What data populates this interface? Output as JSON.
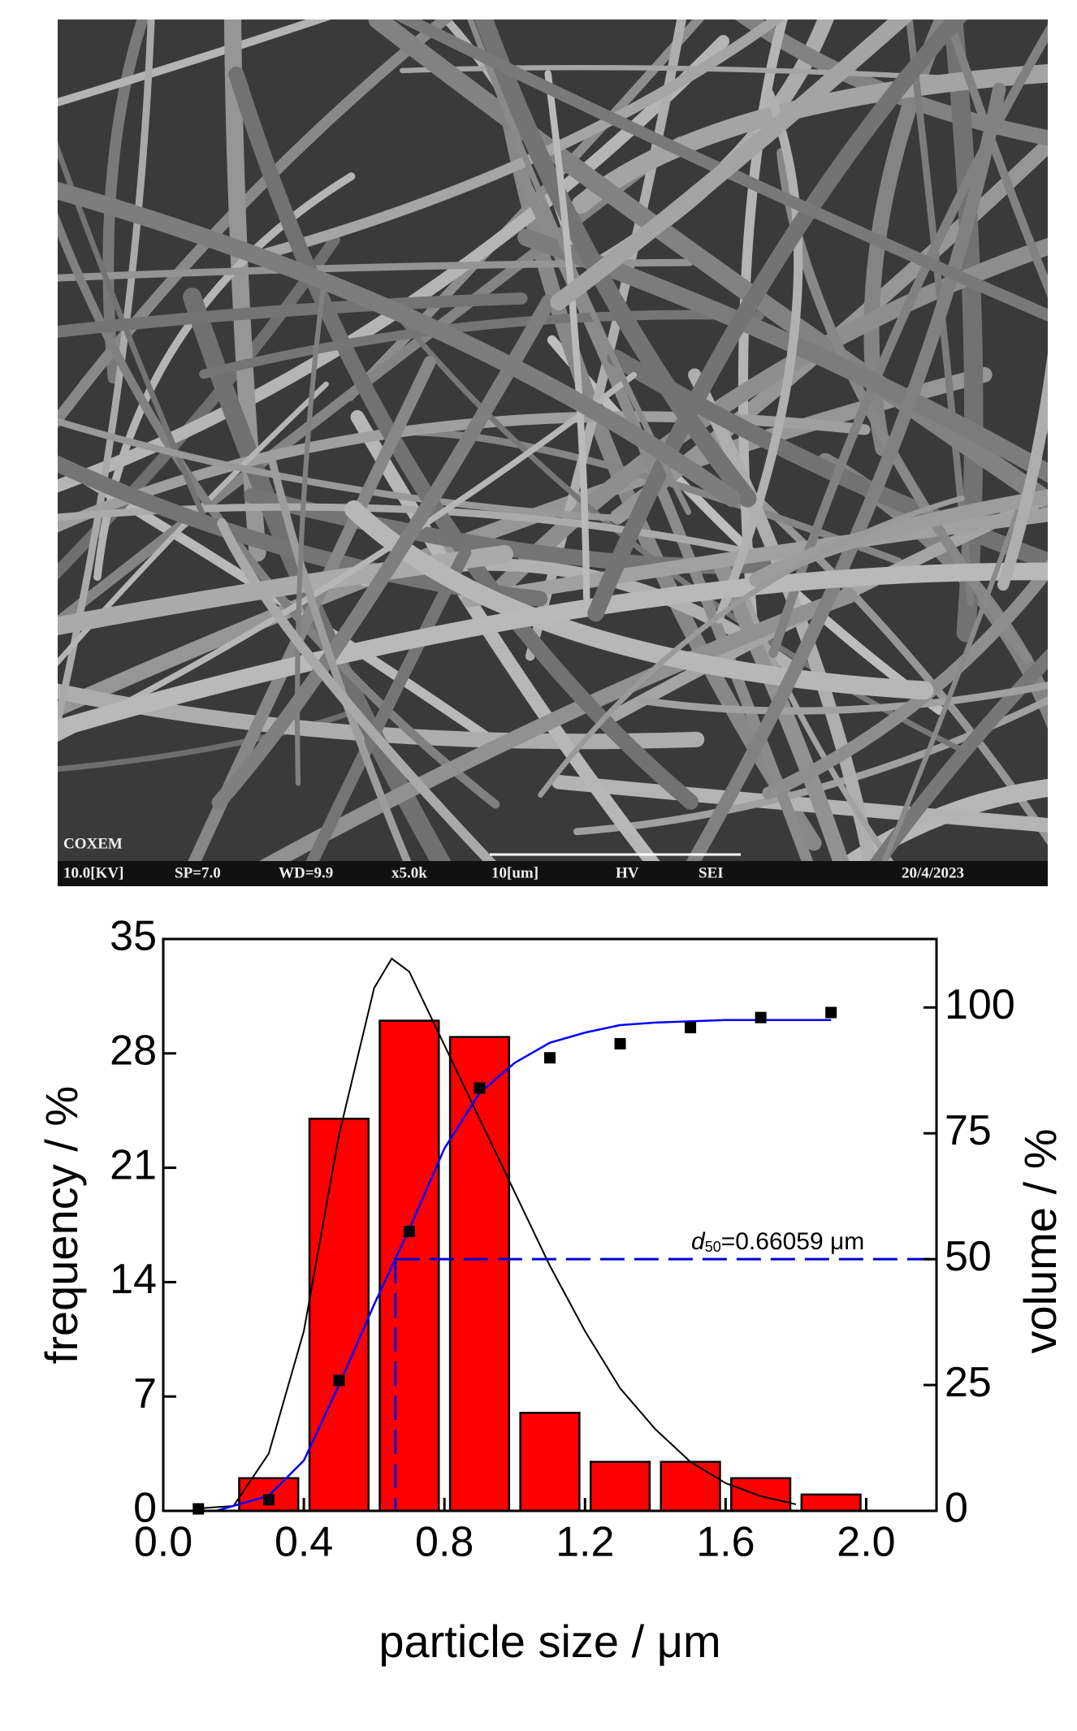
{
  "image": {
    "labels": [
      "COXEM",
      "10.0[KV]",
      "SP=7.0",
      "WD=9.9",
      "x5.0k",
      "10[um]",
      "HV",
      "SEI",
      "20/4/2023"
    ]
  },
  "chart_data": {
    "type": "histogram",
    "bins": [
      0.2,
      0.4,
      0.6,
      0.8,
      1.0,
      1.2,
      1.4,
      1.6,
      1.8,
      2.0
    ],
    "values": [
      2,
      24,
      30,
      29,
      6,
      3,
      3,
      2,
      1
    ],
    "color": "#ff0000",
    "xlim": [
      0,
      2.2
    ],
    "xticks": [
      {
        "value": 0,
        "label": "0.0"
      },
      0.4,
      0.8,
      1.2,
      1.6,
      {
        "value": 2,
        "label": "2.0"
      }
    ],
    "ylim": [
      0,
      35
    ],
    "yticks": [
      0,
      7,
      14,
      21,
      28,
      35
    ],
    "y2lim": [
      0,
      113.6
    ],
    "y2ticks": [
      0,
      25,
      50,
      75,
      100
    ],
    "xlabel": "particle size / μm",
    "ylabel": "frequency / %",
    "y2label": "volume / %",
    "fit_frequency": {
      "color": "#000000",
      "x": [
        0.1,
        0.2,
        0.3,
        0.4,
        0.5,
        0.6,
        0.65,
        0.7,
        0.8,
        0.9,
        1.0,
        1.1,
        1.2,
        1.3,
        1.4,
        1.5,
        1.6,
        1.7,
        1.8
      ],
      "values": [
        0.15,
        0.3,
        3.5,
        11,
        23,
        32,
        33.8,
        33,
        28.5,
        24,
        19.5,
        15,
        11,
        7.5,
        5,
        3,
        1.7,
        0.9,
        0.4
      ]
    },
    "volume_points": {
      "color": "#000000",
      "axis": "y2",
      "x": [
        0.1,
        0.3,
        0.5,
        0.7,
        0.9,
        1.1,
        1.3,
        1.5,
        1.7,
        1.9
      ],
      "values": [
        0.4,
        2.2,
        25.9,
        55.5,
        84,
        90,
        92.8,
        96,
        98,
        99
      ]
    },
    "fit_volume": {
      "color": "#0000ff",
      "axis": "y2",
      "x": [
        0.15,
        0.3,
        0.4,
        0.5,
        0.6,
        0.66,
        0.7,
        0.8,
        0.9,
        1.0,
        1.1,
        1.2,
        1.3,
        1.4,
        1.6,
        1.9
      ],
      "values": [
        0,
        3,
        10,
        25,
        41,
        50,
        56,
        72,
        83,
        89,
        93,
        95,
        96.5,
        97,
        97.5,
        97.5
      ]
    },
    "d50": {
      "x": 0.66059,
      "y2": 50,
      "color": "#0000cc"
    },
    "annotation": {
      "symbol": "d",
      "subscript": "50",
      "text": "=0.66059 μm"
    }
  }
}
